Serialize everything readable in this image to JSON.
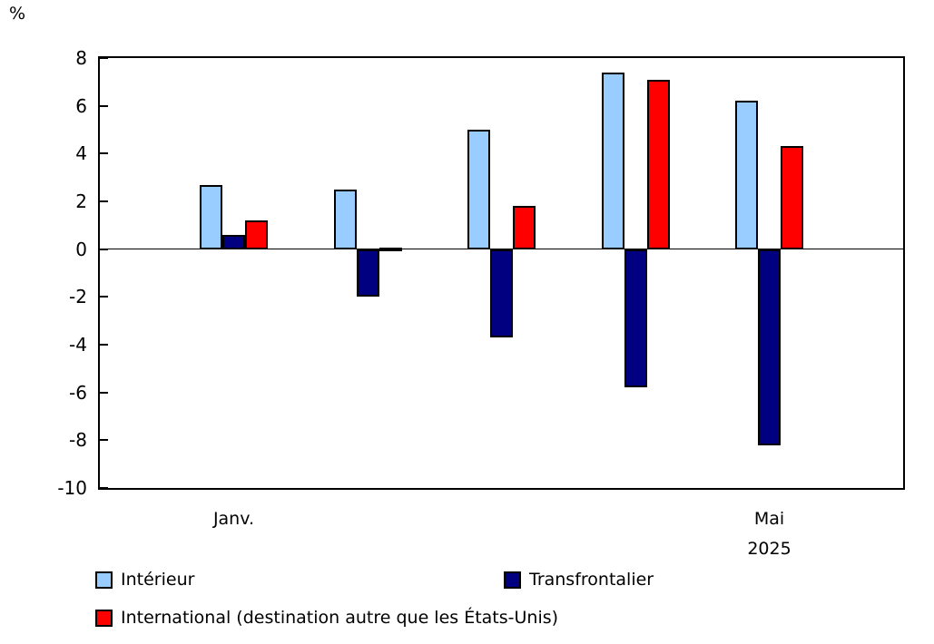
{
  "chart_data": {
    "type": "bar",
    "unit_label": "%",
    "ylim": [
      -10,
      8
    ],
    "yticks": [
      8,
      6,
      4,
      2,
      0,
      -2,
      -4,
      -6,
      -8,
      -10
    ],
    "n_groups": 5,
    "x_axis_labels": [
      {
        "group_index": 0,
        "lines": [
          "Janv."
        ]
      },
      {
        "group_index": 4,
        "lines": [
          "Mai",
          "2025"
        ]
      }
    ],
    "series": [
      {
        "name": "Intérieur",
        "color": "#99CCFF",
        "values": [
          2.7,
          2.5,
          5.0,
          7.4,
          6.2
        ]
      },
      {
        "name": "Transfrontalier",
        "color": "#000080",
        "values": [
          0.6,
          -2.0,
          -3.7,
          -5.8,
          -8.2
        ]
      },
      {
        "name": "International (destination autre que les États-Unis)",
        "color": "#FF0000",
        "values": [
          1.2,
          0.0,
          1.8,
          7.1,
          4.3
        ]
      }
    ],
    "axis_color": "#000000",
    "grid": false,
    "legend_position": "bottom-left"
  }
}
